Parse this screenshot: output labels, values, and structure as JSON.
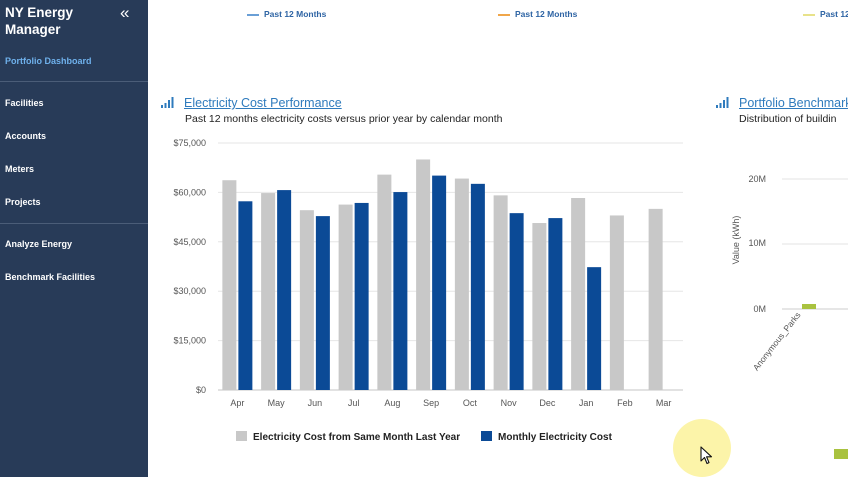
{
  "sidebar": {
    "app_title": "NY Energy Manager",
    "collapse_glyph": "«",
    "portfolio_dashboard": "Portfolio Dashboard",
    "items": [
      "Facilities",
      "Accounts",
      "Meters",
      "Projects"
    ],
    "items2": [
      "Analyze Energy",
      "Benchmark Facilities"
    ]
  },
  "top_legends": [
    {
      "label": "Past 12 Months",
      "color": "#6a9fd6"
    },
    {
      "label": "Past 12 Months",
      "color": "#f0a64a"
    },
    {
      "label": "Past 12",
      "color": "#e8e28a"
    }
  ],
  "card1": {
    "icon": "bar-chart-icon",
    "title": "Electricity Cost Performance",
    "subtitle": "Past 12 months electricity costs versus prior year by calendar month"
  },
  "card2": {
    "icon": "bar-chart-icon",
    "title": "Portfolio Benchmark",
    "subtitle": "Distribution of buildin",
    "ylabel": "Value (kWh)",
    "yticks": [
      "20M",
      "10M",
      "0M"
    ],
    "xtick": "Anonymous_Parks"
  },
  "chart_data": {
    "type": "bar",
    "categories": [
      "Apr",
      "May",
      "Jun",
      "Jul",
      "Aug",
      "Sep",
      "Oct",
      "Nov",
      "Dec",
      "Jan",
      "Feb",
      "Mar"
    ],
    "series": [
      {
        "name": "Electricity Cost from Same Month Last Year",
        "color": "#c8c8c8",
        "values": [
          63700,
          59800,
          54600,
          56300,
          65400,
          70000,
          64200,
          59100,
          50700,
          58300,
          53000,
          55000
        ]
      },
      {
        "name": "Monthly Electricity Cost",
        "color": "#0b4a96",
        "values": [
          57300,
          60700,
          52800,
          56800,
          60100,
          65100,
          62600,
          53700,
          52200,
          37300,
          null,
          null
        ]
      }
    ],
    "yticks": [
      "$75,000",
      "$60,000",
      "$45,000",
      "$30,000",
      "$15,000",
      "$0"
    ],
    "ylim": [
      0,
      75000
    ],
    "grid": true,
    "legend": "bottom"
  }
}
